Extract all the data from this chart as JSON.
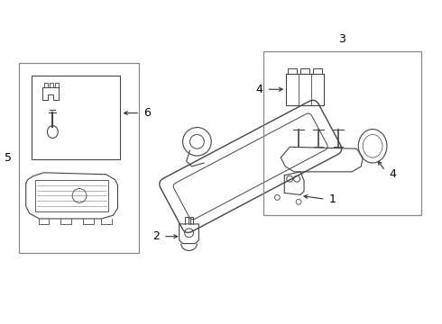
{
  "background_color": "#ffffff",
  "fig_width": 4.9,
  "fig_height": 3.6,
  "dpi": 100,
  "line_color": "#444444",
  "box_edge_color": "#888888",
  "arrow_color": "#333333",
  "label_color": "#000000",
  "label_fontsize": 9
}
